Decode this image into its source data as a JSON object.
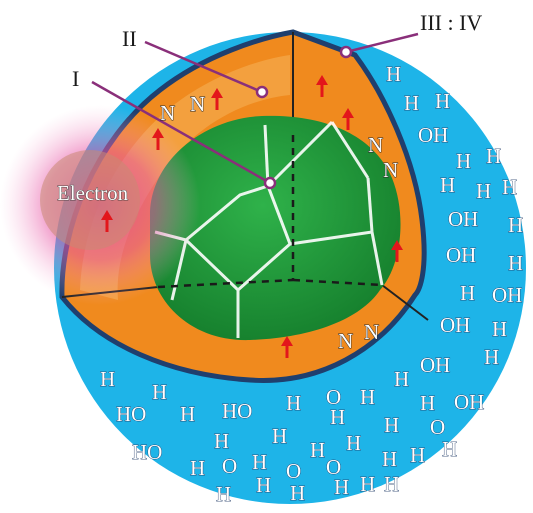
{
  "labels": {
    "layer_1": "I",
    "layer_2": "II",
    "layer_3_4": "III : IV",
    "electron": "Electron"
  },
  "atoms": {
    "nitrogen": "N",
    "hydrogen": "H",
    "oxygen": "O",
    "hydroxyl": "OH",
    "hydroxyl_reversed": "HO"
  },
  "colors": {
    "water": "#1eb4e8",
    "shell": "#f08a1e",
    "shell_light": "#f6b35a",
    "core": "#1f9a3a",
    "core_dark": "#137a2a",
    "boundary": "#1f3f6e",
    "arrow": "#e3161b",
    "electron_glow": "#e0449a",
    "pointer": "#8a2f7a"
  },
  "icons": [
    "up-arrow-icon",
    "pointer-dot-icon"
  ]
}
